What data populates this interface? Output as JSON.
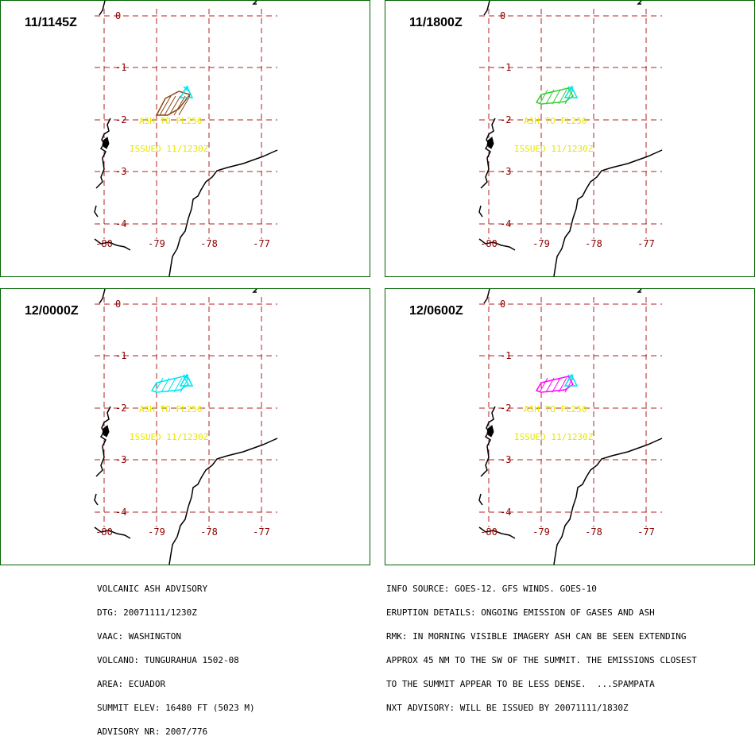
{
  "colors": {
    "border": "#006400",
    "grid": "#b22222",
    "axis_labels": "#8b0000",
    "label_text": "#e6e600",
    "coast": "#000000",
    "summit_marker": "#00e5ee"
  },
  "axes": {
    "lat_labels": [
      "0",
      "-1",
      "-2",
      "-3",
      "-4"
    ],
    "lon_labels": [
      "-80",
      "-79",
      "-78",
      "-77"
    ]
  },
  "panels": [
    {
      "title": "11/1145Z",
      "ash_label": "ASH TO FL250",
      "issued_label": "ISSUED 11/1230Z",
      "cloud_color": "#8b4513",
      "cloud_style": "diamond"
    },
    {
      "title": "11/1800Z",
      "ash_label": "ASH TO FL250",
      "issued_label": "ISSUED 11/1230Z",
      "cloud_color": "#32cd32",
      "cloud_style": "elongated"
    },
    {
      "title": "12/0000Z",
      "ash_label": "ASH TO FL250",
      "issued_label": "ISSUED 11/1230Z",
      "cloud_color": "#00e5ee",
      "cloud_style": "elongated"
    },
    {
      "title": "12/0600Z",
      "ash_label": "ASH TO FL250",
      "issued_label": "ISSUED 11/1230Z",
      "cloud_color": "#ff00ff",
      "cloud_style": "elongated"
    }
  ],
  "advisory_left": [
    "VOLCANIC ASH ADVISORY",
    "DTG: 20071111/1230Z",
    "VAAC: WASHINGTON",
    "VOLCANO: TUNGURAHUA 1502-08",
    "AREA: ECUADOR",
    "SUMMIT ELEV: 16480 FT (5023 M)",
    "ADVISORY NR: 2007/776"
  ],
  "advisory_right": [
    "INFO SOURCE: GOES-12. GFS WINDS. GOES-10",
    "ERUPTION DETAILS: ONGOING EMISSION OF GASES AND ASH",
    "RMK: IN MORNING VISIBLE IMAGERY ASH CAN BE SEEN EXTENDING",
    "APPROX 45 NM TO THE SW OF THE SUMMIT. THE EMISSIONS CLOSEST",
    "TO THE SUMMIT APPEAR TO BE LESS DENSE.  ...SPAMPATA",
    "NXT ADVISORY: WILL BE ISSUED BY 20071111/1830Z"
  ]
}
